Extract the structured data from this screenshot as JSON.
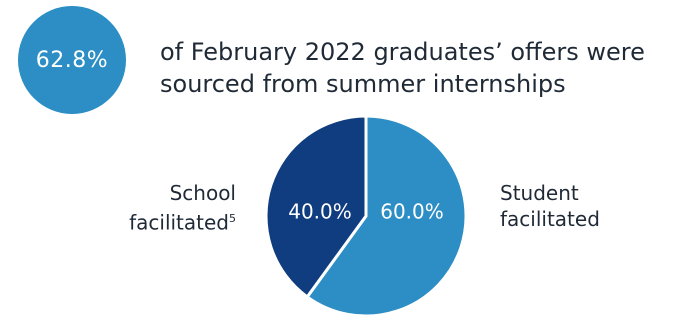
{
  "stat": {
    "value": "62.8%",
    "text_line1": "of February 2022 graduates’ offers were",
    "text_line2": "sourced from summer internships"
  },
  "colors": {
    "stat_circle": "#2c8ec5",
    "school": "#0f3d80",
    "student": "#2c8ec5"
  },
  "labels": {
    "school_line1": "School",
    "school_line2": "facilitated",
    "school_footnote": "5",
    "student_line1": "Student",
    "student_line2": "facilitated"
  },
  "chart_data": {
    "type": "pie",
    "categories": [
      "Student facilitated",
      "School facilitated"
    ],
    "values": [
      60.0,
      40.0
    ],
    "data_labels": [
      "60.0%",
      "40.0%"
    ]
  }
}
